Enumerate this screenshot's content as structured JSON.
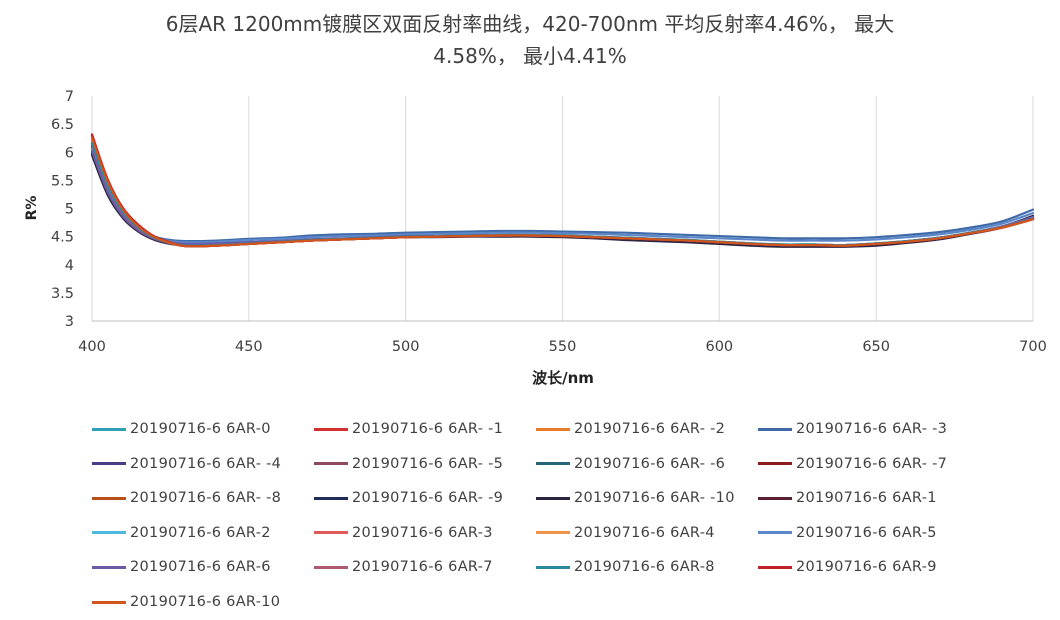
{
  "chart_data": {
    "type": "line",
    "title_line1": "6层AR 1200mm镀膜区双面反射率曲线，420-700nm 平均反射率4.46%， 最大",
    "title_line2": "4.58%， 最小4.41%",
    "xlabel": "波长/nm",
    "ylabel": "R%",
    "xlim": [
      400,
      700
    ],
    "ylim": [
      3,
      7
    ],
    "x_ticks": [
      "400",
      "450",
      "500",
      "550",
      "600",
      "650",
      "700"
    ],
    "y_ticks": [
      "3",
      "3.5",
      "4",
      "4.5",
      "5",
      "5.5",
      "6",
      "6.5",
      "7"
    ],
    "grid": "vertical",
    "legend_position": "bottom",
    "x": [
      400,
      405,
      410,
      415,
      420,
      425,
      430,
      440,
      450,
      460,
      470,
      480,
      490,
      500,
      510,
      520,
      530,
      540,
      550,
      560,
      570,
      580,
      590,
      600,
      610,
      620,
      630,
      640,
      650,
      660,
      670,
      680,
      690,
      700
    ],
    "series": [
      {
        "name": "20190716-6 6AR-0",
        "color": "#2e9fb5",
        "values": [
          6.2,
          5.42,
          4.92,
          4.64,
          4.48,
          4.39,
          4.34,
          4.35,
          4.38,
          4.41,
          4.44,
          4.46,
          4.48,
          4.5,
          4.51,
          4.52,
          4.53,
          4.53,
          4.52,
          4.5,
          4.48,
          4.46,
          4.44,
          4.41,
          4.38,
          4.36,
          4.36,
          4.35,
          4.38,
          4.42,
          4.48,
          4.57,
          4.67,
          4.82
        ]
      },
      {
        "name": "20190716-6 6AR- -1",
        "color": "#d3302f",
        "values": [
          6.32,
          5.52,
          5.0,
          4.7,
          4.5,
          4.4,
          4.33,
          4.34,
          4.37,
          4.4,
          4.43,
          4.45,
          4.47,
          4.49,
          4.5,
          4.51,
          4.52,
          4.52,
          4.51,
          4.49,
          4.47,
          4.45,
          4.43,
          4.4,
          4.37,
          4.35,
          4.35,
          4.34,
          4.37,
          4.41,
          4.47,
          4.56,
          4.66,
          4.81
        ]
      },
      {
        "name": "20190716-6 6AR- -2",
        "color": "#e87a2a",
        "values": [
          6.25,
          5.47,
          4.96,
          4.67,
          4.49,
          4.4,
          4.34,
          4.35,
          4.38,
          4.41,
          4.44,
          4.46,
          4.48,
          4.5,
          4.51,
          4.52,
          4.53,
          4.53,
          4.52,
          4.5,
          4.48,
          4.46,
          4.44,
          4.41,
          4.38,
          4.36,
          4.36,
          4.35,
          4.38,
          4.42,
          4.48,
          4.57,
          4.67,
          4.82
        ]
      },
      {
        "name": "20190716-6 6AR- -3",
        "color": "#3e6aa8",
        "values": [
          6.05,
          5.3,
          4.86,
          4.62,
          4.5,
          4.44,
          4.42,
          4.43,
          4.46,
          4.48,
          4.52,
          4.54,
          4.55,
          4.57,
          4.58,
          4.59,
          4.6,
          4.6,
          4.59,
          4.58,
          4.57,
          4.55,
          4.53,
          4.51,
          4.49,
          4.47,
          4.47,
          4.47,
          4.49,
          4.53,
          4.58,
          4.66,
          4.77,
          4.98
        ]
      },
      {
        "name": "20190716-6 6AR- -4",
        "color": "#4a3d86",
        "values": [
          6.0,
          5.28,
          4.84,
          4.6,
          4.46,
          4.39,
          4.37,
          4.38,
          4.4,
          4.42,
          4.45,
          4.46,
          4.48,
          4.5,
          4.5,
          4.51,
          4.51,
          4.51,
          4.5,
          4.48,
          4.46,
          4.44,
          4.42,
          4.39,
          4.36,
          4.34,
          4.34,
          4.34,
          4.36,
          4.41,
          4.47,
          4.56,
          4.68,
          4.86
        ]
      },
      {
        "name": "20190716-6 6AR- -5",
        "color": "#8e4a5c",
        "values": [
          6.1,
          5.36,
          4.9,
          4.63,
          4.47,
          4.39,
          4.35,
          4.36,
          4.39,
          4.42,
          4.45,
          4.46,
          4.48,
          4.5,
          4.51,
          4.52,
          4.52,
          4.52,
          4.51,
          4.49,
          4.47,
          4.45,
          4.43,
          4.4,
          4.37,
          4.35,
          4.35,
          4.35,
          4.37,
          4.42,
          4.48,
          4.56,
          4.67,
          4.83
        ]
      },
      {
        "name": "20190716-6 6AR- -6",
        "color": "#27667a",
        "values": [
          6.08,
          5.34,
          4.88,
          4.62,
          4.46,
          4.38,
          4.34,
          4.35,
          4.38,
          4.41,
          4.44,
          4.46,
          4.48,
          4.5,
          4.51,
          4.52,
          4.52,
          4.52,
          4.51,
          4.49,
          4.47,
          4.45,
          4.43,
          4.4,
          4.37,
          4.35,
          4.35,
          4.35,
          4.37,
          4.42,
          4.48,
          4.56,
          4.67,
          4.82
        ]
      },
      {
        "name": "20190716-6 6AR- -7",
        "color": "#8a1c1c",
        "values": [
          6.15,
          5.4,
          4.92,
          4.64,
          4.47,
          4.38,
          4.33,
          4.34,
          4.37,
          4.4,
          4.43,
          4.45,
          4.47,
          4.49,
          4.5,
          4.51,
          4.52,
          4.52,
          4.51,
          4.49,
          4.47,
          4.45,
          4.43,
          4.4,
          4.37,
          4.35,
          4.35,
          4.34,
          4.37,
          4.41,
          4.47,
          4.55,
          4.66,
          4.81
        ]
      },
      {
        "name": "20190716-6 6AR- -8",
        "color": "#b8501a",
        "values": [
          6.22,
          5.45,
          4.95,
          4.66,
          4.48,
          4.39,
          4.33,
          4.34,
          4.37,
          4.4,
          4.43,
          4.45,
          4.47,
          4.49,
          4.5,
          4.51,
          4.52,
          4.52,
          4.51,
          4.49,
          4.47,
          4.45,
          4.43,
          4.4,
          4.37,
          4.35,
          4.35,
          4.34,
          4.37,
          4.41,
          4.47,
          4.56,
          4.66,
          4.81
        ]
      },
      {
        "name": "20190716-6 6AR- -9",
        "color": "#1f2d5c",
        "values": [
          5.98,
          5.26,
          4.83,
          4.59,
          4.45,
          4.38,
          4.36,
          4.37,
          4.39,
          4.41,
          4.44,
          4.46,
          4.48,
          4.5,
          4.5,
          4.51,
          4.51,
          4.51,
          4.5,
          4.48,
          4.45,
          4.43,
          4.41,
          4.38,
          4.35,
          4.33,
          4.33,
          4.33,
          4.35,
          4.4,
          4.46,
          4.55,
          4.66,
          4.84
        ]
      },
      {
        "name": "20190716-6 6AR- -10",
        "color": "#2c2440",
        "values": [
          5.95,
          5.24,
          4.82,
          4.58,
          4.44,
          4.37,
          4.35,
          4.36,
          4.38,
          4.4,
          4.43,
          4.45,
          4.47,
          4.49,
          4.49,
          4.5,
          4.5,
          4.5,
          4.49,
          4.47,
          4.44,
          4.42,
          4.4,
          4.37,
          4.34,
          4.32,
          4.32,
          4.32,
          4.34,
          4.39,
          4.45,
          4.55,
          4.67,
          4.87
        ]
      },
      {
        "name": "20190716-6 6AR-1",
        "color": "#5a2030",
        "values": [
          6.12,
          5.38,
          4.91,
          4.63,
          4.47,
          4.38,
          4.34,
          4.35,
          4.38,
          4.41,
          4.44,
          4.46,
          4.48,
          4.5,
          4.51,
          4.52,
          4.52,
          4.52,
          4.51,
          4.49,
          4.47,
          4.45,
          4.43,
          4.4,
          4.37,
          4.35,
          4.35,
          4.34,
          4.37,
          4.41,
          4.47,
          4.56,
          4.66,
          4.82
        ]
      },
      {
        "name": "20190716-6 6AR-2",
        "color": "#4fb8e0",
        "values": [
          6.18,
          5.42,
          4.93,
          4.65,
          4.48,
          4.39,
          4.34,
          4.35,
          4.38,
          4.41,
          4.44,
          4.46,
          4.48,
          4.5,
          4.51,
          4.52,
          4.53,
          4.53,
          4.52,
          4.5,
          4.48,
          4.46,
          4.44,
          4.41,
          4.38,
          4.36,
          4.36,
          4.35,
          4.38,
          4.42,
          4.48,
          4.57,
          4.67,
          4.82
        ]
      },
      {
        "name": "20190716-6 6AR-3",
        "color": "#e05a5a",
        "values": [
          6.28,
          5.5,
          4.98,
          4.68,
          4.49,
          4.39,
          4.33,
          4.34,
          4.37,
          4.4,
          4.43,
          4.45,
          4.47,
          4.49,
          4.5,
          4.51,
          4.52,
          4.52,
          4.51,
          4.49,
          4.47,
          4.45,
          4.43,
          4.4,
          4.37,
          4.35,
          4.35,
          4.34,
          4.37,
          4.41,
          4.47,
          4.56,
          4.66,
          4.81
        ]
      },
      {
        "name": "20190716-6 6AR-4",
        "color": "#f0924a",
        "values": [
          6.24,
          5.46,
          4.95,
          4.66,
          4.48,
          4.39,
          4.34,
          4.35,
          4.38,
          4.41,
          4.44,
          4.46,
          4.48,
          4.5,
          4.51,
          4.52,
          4.53,
          4.53,
          4.52,
          4.5,
          4.48,
          4.46,
          4.44,
          4.41,
          4.38,
          4.36,
          4.36,
          4.35,
          4.38,
          4.42,
          4.48,
          4.57,
          4.67,
          4.82
        ]
      },
      {
        "name": "20190716-6 6AR-5",
        "color": "#5b86c9",
        "values": [
          6.06,
          5.32,
          4.87,
          4.62,
          4.49,
          4.42,
          4.4,
          4.41,
          4.44,
          4.46,
          4.49,
          4.51,
          4.52,
          4.54,
          4.55,
          4.56,
          4.57,
          4.57,
          4.56,
          4.55,
          4.53,
          4.51,
          4.49,
          4.47,
          4.45,
          4.43,
          4.43,
          4.43,
          4.45,
          4.49,
          4.54,
          4.62,
          4.73,
          4.92
        ]
      },
      {
        "name": "20190716-6 6AR-6",
        "color": "#6a5aa8",
        "values": [
          6.02,
          5.29,
          4.85,
          4.6,
          4.46,
          4.39,
          4.37,
          4.38,
          4.4,
          4.42,
          4.45,
          4.47,
          4.49,
          4.51,
          4.51,
          4.52,
          4.52,
          4.52,
          4.51,
          4.49,
          4.47,
          4.45,
          4.43,
          4.4,
          4.37,
          4.35,
          4.35,
          4.35,
          4.37,
          4.42,
          4.48,
          4.57,
          4.68,
          4.85
        ]
      },
      {
        "name": "20190716-6 6AR-7",
        "color": "#b05a72",
        "values": [
          6.14,
          5.39,
          4.91,
          4.64,
          4.47,
          4.38,
          4.34,
          4.35,
          4.38,
          4.41,
          4.44,
          4.46,
          4.48,
          4.5,
          4.51,
          4.52,
          4.52,
          4.52,
          4.51,
          4.49,
          4.47,
          4.45,
          4.43,
          4.4,
          4.37,
          4.35,
          4.35,
          4.35,
          4.37,
          4.42,
          4.48,
          4.56,
          4.67,
          4.82
        ]
      },
      {
        "name": "20190716-6 6AR-8",
        "color": "#2a8aa0",
        "values": [
          6.16,
          5.41,
          4.93,
          4.65,
          4.48,
          4.39,
          4.34,
          4.35,
          4.38,
          4.41,
          4.44,
          4.46,
          4.48,
          4.5,
          4.51,
          4.52,
          4.53,
          4.53,
          4.52,
          4.5,
          4.48,
          4.46,
          4.44,
          4.41,
          4.38,
          4.36,
          4.36,
          4.35,
          4.38,
          4.42,
          4.48,
          4.57,
          4.67,
          4.82
        ]
      },
      {
        "name": "20190716-6 6AR-9",
        "color": "#c0202a",
        "values": [
          6.3,
          5.51,
          4.99,
          4.69,
          4.5,
          4.4,
          4.33,
          4.34,
          4.37,
          4.4,
          4.43,
          4.45,
          4.47,
          4.49,
          4.5,
          4.51,
          4.52,
          4.52,
          4.51,
          4.49,
          4.47,
          4.45,
          4.43,
          4.4,
          4.37,
          4.35,
          4.35,
          4.34,
          4.37,
          4.41,
          4.47,
          4.56,
          4.66,
          4.81
        ]
      },
      {
        "name": "20190716-6 6AR-10",
        "color": "#d0561e",
        "values": [
          6.26,
          5.48,
          4.97,
          4.67,
          4.49,
          4.39,
          4.33,
          4.34,
          4.37,
          4.4,
          4.43,
          4.45,
          4.47,
          4.49,
          4.5,
          4.51,
          4.52,
          4.52,
          4.51,
          4.49,
          4.47,
          4.45,
          4.43,
          4.4,
          4.37,
          4.35,
          4.35,
          4.34,
          4.37,
          4.41,
          4.47,
          4.56,
          4.66,
          4.81
        ]
      }
    ]
  }
}
